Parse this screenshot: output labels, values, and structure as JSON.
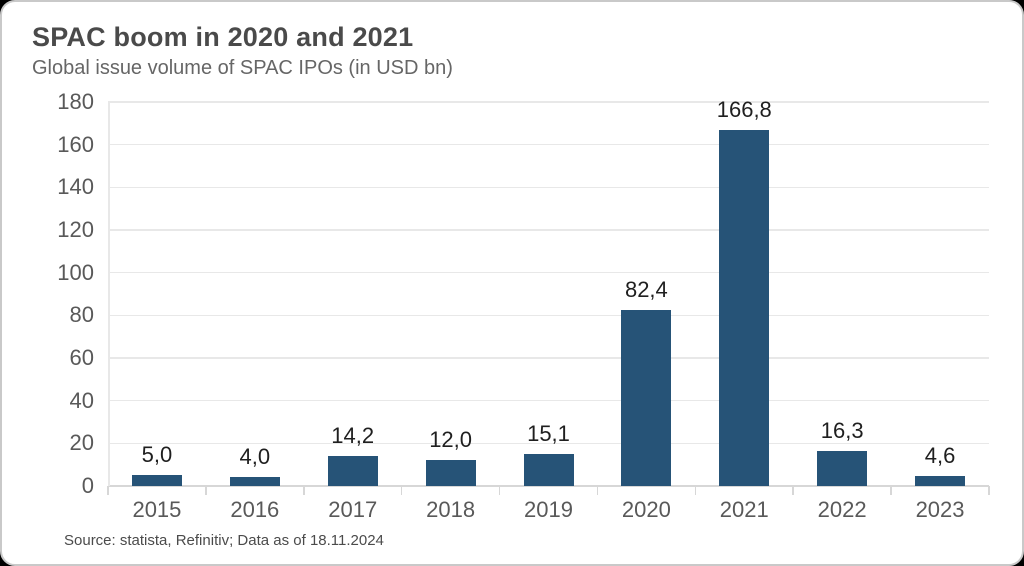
{
  "header": {
    "title": "SPAC boom in 2020 and 2021",
    "subtitle": "Global issue volume of SPAC IPOs (in USD bn)"
  },
  "footer": {
    "source": "Source: statista, Refinitiv; Data as of 18.11.2024"
  },
  "chart_data": {
    "type": "bar",
    "title": "SPAC boom in 2020 and 2021",
    "subtitle": "Global issue volume of SPAC IPOs (in USD bn)",
    "categories": [
      "2015",
      "2016",
      "2017",
      "2018",
      "2019",
      "2020",
      "2021",
      "2022",
      "2023"
    ],
    "values": [
      5.0,
      4.0,
      14.2,
      12.0,
      15.1,
      82.4,
      166.8,
      16.3,
      4.6
    ],
    "value_labels": [
      "5,0",
      "4,0",
      "14,2",
      "12,0",
      "15,1",
      "82,4",
      "166,8",
      "16,3",
      "4,6"
    ],
    "xlabel": "",
    "ylabel": "",
    "ylim": [
      0,
      180
    ],
    "ytick_step": 20,
    "ytick_labels": [
      "0",
      "20",
      "40",
      "60",
      "80",
      "100",
      "120",
      "140",
      "160",
      "180"
    ],
    "grid": true,
    "legend": false,
    "decimal_separator": ","
  },
  "colors": {
    "bar": "#265377",
    "gridline": "#e8e8e8",
    "axis": "#d7d7d7",
    "title": "#4a4a4a",
    "subtitle": "#666666",
    "tick_label": "#595959",
    "value_label": "#1f1f1f",
    "card_background": "#ffffff",
    "card_border": "#c9c9c9"
  }
}
